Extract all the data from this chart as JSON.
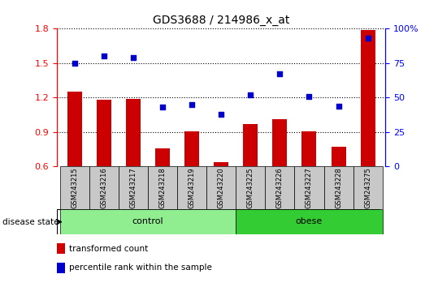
{
  "title": "GDS3688 / 214986_x_at",
  "samples": [
    "GSM243215",
    "GSM243216",
    "GSM243217",
    "GSM243218",
    "GSM243219",
    "GSM243220",
    "GSM243225",
    "GSM243226",
    "GSM243227",
    "GSM243228",
    "GSM243275"
  ],
  "transformed_count": [
    1.25,
    1.18,
    1.185,
    0.76,
    0.905,
    0.635,
    0.97,
    1.01,
    0.905,
    0.77,
    1.79
  ],
  "percentile_rank": [
    75,
    80,
    79,
    43,
    45,
    38,
    52,
    67,
    51,
    44,
    93
  ],
  "ylim_left": [
    0.6,
    1.8
  ],
  "ylim_right": [
    0,
    100
  ],
  "yticks_left": [
    0.6,
    0.9,
    1.2,
    1.5,
    1.8
  ],
  "yticks_right": [
    0,
    25,
    50,
    75,
    100
  ],
  "bar_color": "#cc0000",
  "scatter_color": "#0000cc",
  "groups": [
    {
      "label": "control",
      "indices": [
        0,
        1,
        2,
        3,
        4,
        5
      ],
      "color": "#90ee90"
    },
    {
      "label": "obese",
      "indices": [
        6,
        7,
        8,
        9,
        10
      ],
      "color": "#33cc33"
    }
  ],
  "bar_width": 0.5,
  "label_bg_color": "#c8c8c8",
  "legend_items": [
    {
      "label": "transformed count",
      "color": "#cc0000"
    },
    {
      "label": "percentile rank within the sample",
      "color": "#0000cc"
    }
  ],
  "disease_state_label": "disease state"
}
